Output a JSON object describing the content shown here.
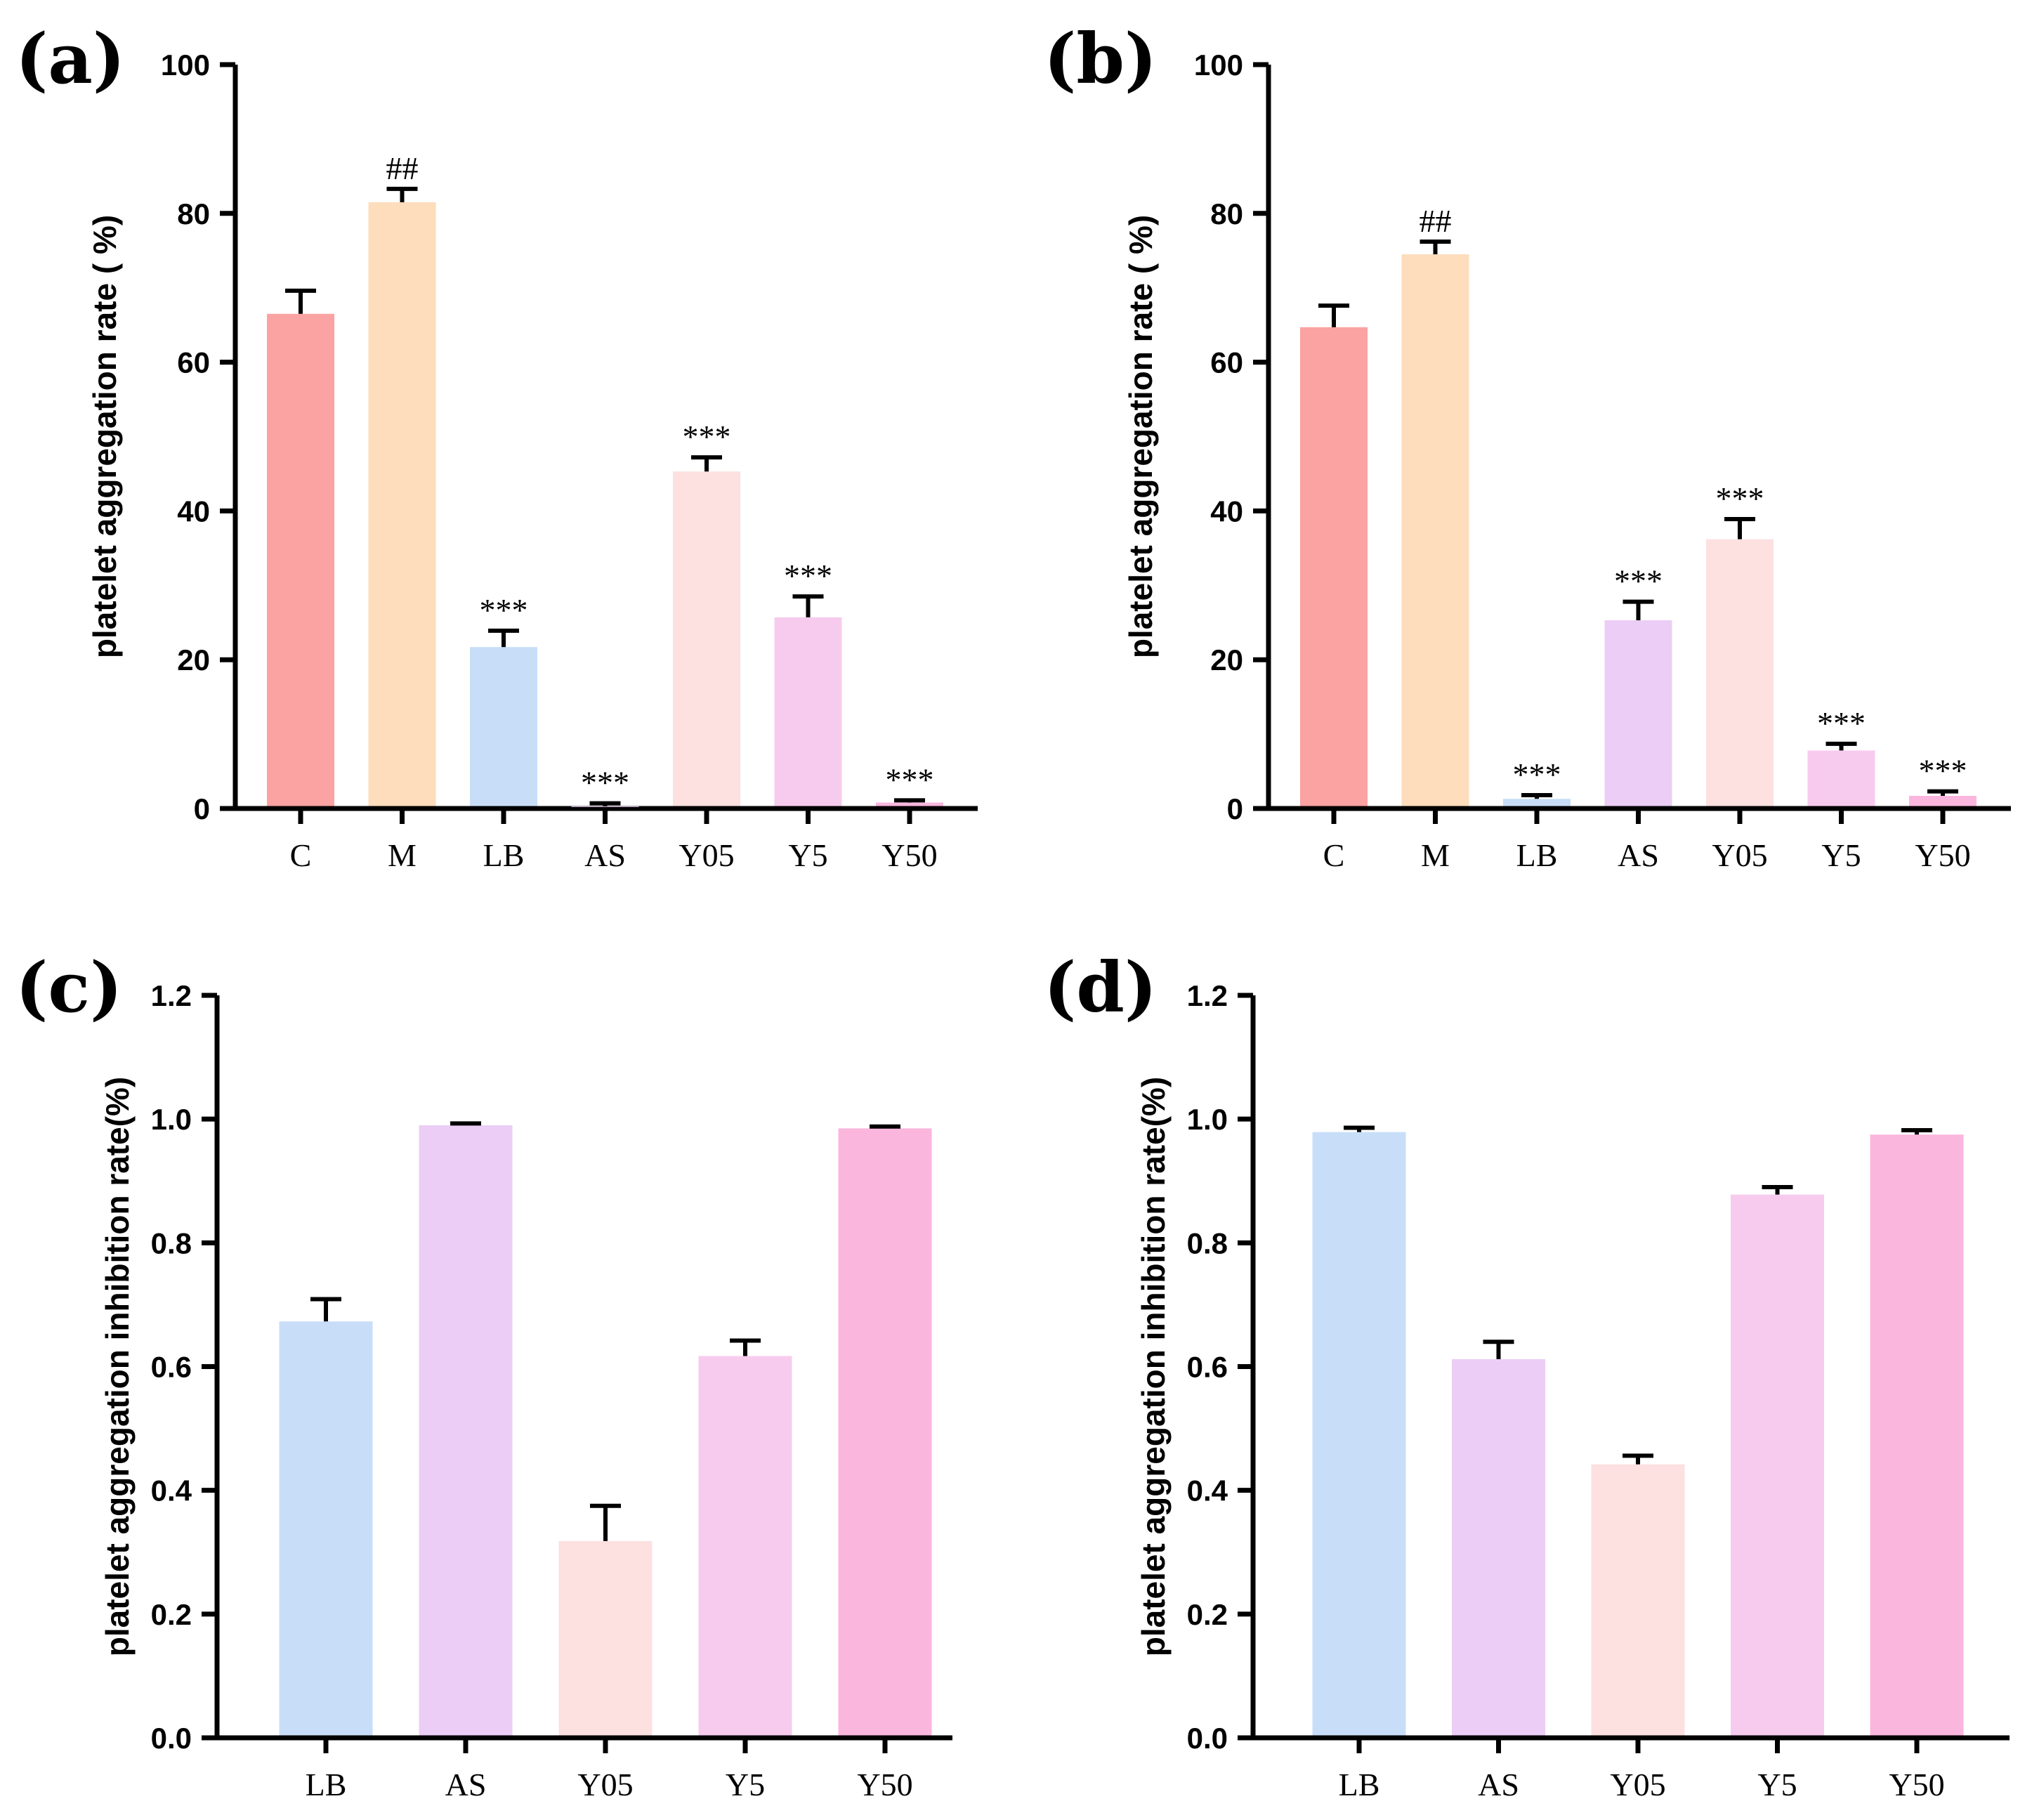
{
  "chart_data": [
    {
      "panel": "(a)",
      "type": "bar",
      "categories": [
        "C",
        "M",
        "LB",
        "AS",
        "Y05",
        "Y5",
        "Y50"
      ],
      "values": [
        66.5,
        81.5,
        21.7,
        0.3,
        45.3,
        25.7,
        0.8
      ],
      "errors": [
        3.1,
        1.8,
        2.2,
        0.4,
        1.9,
        2.8,
        0.3
      ],
      "annotations": [
        "",
        "##",
        "***",
        "***",
        "***",
        "***",
        "***"
      ],
      "colors": [
        "#fba2a2",
        "#fdddbc",
        "#c8def8",
        "#ebcdf5",
        "#fde0e0",
        "#f7cbee",
        "#fbb6de"
      ],
      "ylabel": "platelet aggregation rate ( %)",
      "ylim": [
        0,
        100
      ],
      "yticks": [
        "0",
        "20",
        "40",
        "60",
        "80",
        "100"
      ],
      "ytick_values": [
        0,
        20,
        40,
        60,
        80,
        100
      ]
    },
    {
      "panel": "(b)",
      "type": "bar",
      "categories": [
        "C",
        "M",
        "LB",
        "AS",
        "Y05",
        "Y5",
        "Y50"
      ],
      "values": [
        64.7,
        74.5,
        1.3,
        25.3,
        36.2,
        7.8,
        1.7
      ],
      "errors": [
        2.9,
        1.7,
        0.5,
        2.5,
        2.7,
        0.9,
        0.6
      ],
      "annotations": [
        "",
        "##",
        "***",
        "***",
        "***",
        "***",
        "***"
      ],
      "colors": [
        "#fba2a2",
        "#fdddbc",
        "#c8def8",
        "#ebcdf5",
        "#fde0e0",
        "#f7cbee",
        "#fbb6de"
      ],
      "ylabel": "platelet aggregation rate ( %)",
      "ylim": [
        0,
        100
      ],
      "yticks": [
        "0",
        "20",
        "40",
        "60",
        "80",
        "100"
      ],
      "ytick_values": [
        0,
        20,
        40,
        60,
        80,
        100
      ]
    },
    {
      "panel": "(c)",
      "type": "bar",
      "categories": [
        "LB",
        "AS",
        "Y05",
        "Y5",
        "Y50"
      ],
      "values": [
        0.673,
        0.99,
        0.318,
        0.617,
        0.985
      ],
      "errors": [
        0.036,
        0.003,
        0.057,
        0.025,
        0.003
      ],
      "annotations": [
        "",
        "",
        "",
        "",
        ""
      ],
      "colors": [
        "#c8def8",
        "#ebcdf5",
        "#fde0e0",
        "#f7cbee",
        "#fbb6de"
      ],
      "ylabel": "platelet aggregation inhibition rate(%)",
      "ylim": [
        0,
        1.2
      ],
      "yticks": [
        "0.0",
        "0.2",
        "0.4",
        "0.6",
        "0.8",
        "1.0",
        "1.2"
      ],
      "ytick_values": [
        0,
        0.2,
        0.4,
        0.6,
        0.8,
        1.0,
        1.2
      ]
    },
    {
      "panel": "(d)",
      "type": "bar",
      "categories": [
        "LB",
        "AS",
        "Y05",
        "Y5",
        "Y50"
      ],
      "values": [
        0.979,
        0.612,
        0.442,
        0.878,
        0.975
      ],
      "errors": [
        0.007,
        0.028,
        0.014,
        0.012,
        0.007
      ],
      "annotations": [
        "",
        "",
        "",
        "",
        ""
      ],
      "colors": [
        "#c8def8",
        "#ebcdf5",
        "#fde0e0",
        "#f7cbee",
        "#fbb6de"
      ],
      "ylabel": "platelet aggregation inhibition rate(%)",
      "ylim": [
        0,
        1.2
      ],
      "yticks": [
        "0.0",
        "0.2",
        "0.4",
        "0.6",
        "0.8",
        "1.0",
        "1.2"
      ],
      "ytick_values": [
        0,
        0.2,
        0.4,
        0.6,
        0.8,
        1.0,
        1.2
      ]
    }
  ]
}
